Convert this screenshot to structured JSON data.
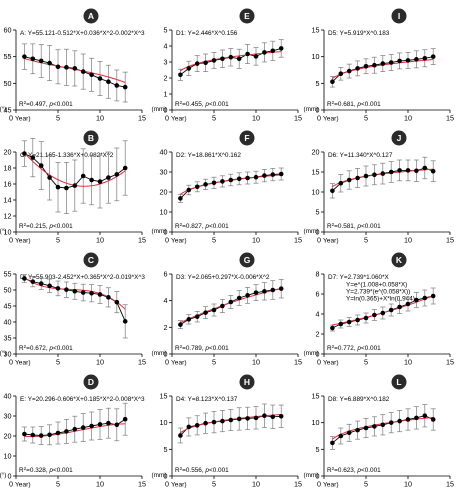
{
  "chart_data": [
    {
      "type": "scatter",
      "panel_letter": "A",
      "equation": "A:  Y=55.121-0.512*X+0.036*X^2-0.002*X^3",
      "r2_label": "R",
      "r2_value": "=0.497, ",
      "p_label": "p",
      "p_value": "<0.001",
      "unit": "(°)",
      "xlabel": "Year",
      "ylim": [
        45,
        60
      ],
      "yticks": [
        45,
        50,
        55,
        60
      ],
      "xlim": [
        0,
        15
      ],
      "xticks": [
        0,
        5,
        10,
        15
      ],
      "x": [
        1,
        2,
        3,
        4,
        5,
        6,
        7,
        8,
        9,
        10,
        11,
        12,
        13
      ],
      "y": [
        55,
        54.6,
        54.2,
        53.8,
        53.1,
        53,
        52.8,
        52.2,
        51.6,
        50.9,
        50.3,
        49.6,
        49.3
      ],
      "err": [
        2.4,
        2.8,
        3.1,
        3.3,
        3.2,
        3.4,
        3.3,
        3.3,
        3.1,
        3.2,
        3.1,
        2.9,
        2.8
      ],
      "fit": {
        "kind": "poly",
        "coef": [
          55.121,
          -0.512,
          0.036,
          -0.002
        ]
      }
    },
    {
      "type": "scatter",
      "panel_letter": "E",
      "equation": "D1:  Y=2.446*X^0.156",
      "r2_label": "R",
      "r2_value": "=0.455, ",
      "p_label": "p",
      "p_value": "<0.001",
      "unit": "(mm)",
      "xlabel": "Year",
      "ylim": [
        0,
        5
      ],
      "yticks": [
        0,
        1,
        2,
        3,
        4,
        5
      ],
      "xlim": [
        0,
        15
      ],
      "xticks": [
        0,
        5,
        10,
        15
      ],
      "x": [
        1,
        2,
        3,
        4,
        5,
        6,
        7,
        8,
        9,
        10,
        11,
        12,
        13
      ],
      "y": [
        2.2,
        2.6,
        2.9,
        2.95,
        3.1,
        3.2,
        3.3,
        3.2,
        3.5,
        3.35,
        3.6,
        3.7,
        3.85
      ],
      "err": [
        0.35,
        0.45,
        0.5,
        0.55,
        0.5,
        0.55,
        0.55,
        0.6,
        0.6,
        0.55,
        0.6,
        0.6,
        0.55
      ],
      "fit": {
        "kind": "power",
        "coef": [
          2.446,
          0.156
        ]
      }
    },
    {
      "type": "scatter",
      "panel_letter": "I",
      "equation": "D5:  Y=5.919*X^0.183",
      "r2_label": "R",
      "r2_value": "=0.681, ",
      "p_label": "p",
      "p_value": "<0.001",
      "unit": "(mm)",
      "xlabel": "Year",
      "ylim": [
        0,
        15
      ],
      "yticks": [
        0,
        5,
        10,
        15
      ],
      "xlim": [
        0,
        15
      ],
      "xticks": [
        0,
        5,
        10,
        15
      ],
      "x": [
        1,
        2,
        3,
        4,
        5,
        6,
        7,
        8,
        9,
        10,
        11,
        12,
        13
      ],
      "y": [
        5.3,
        6.8,
        7.3,
        7.8,
        8.2,
        8.4,
        8.7,
        8.9,
        9.2,
        9.3,
        9.5,
        9.7,
        10
      ],
      "err": [
        1,
        1.2,
        1.3,
        1.4,
        1.4,
        1.5,
        1.5,
        1.5,
        1.5,
        1.5,
        1.6,
        1.6,
        1.5
      ],
      "fit": {
        "kind": "power",
        "coef": [
          5.919,
          0.183
        ]
      }
    },
    {
      "type": "scatter",
      "panel_letter": "B",
      "equation": "C:  Y=21.165-1.336*X+0.082*X^2",
      "r2_label": "R",
      "r2_value": "=0.215, ",
      "p_label": "p",
      "p_value": "<0.001",
      "unit": "(°)",
      "xlabel": "Year",
      "ylim": [
        10,
        20
      ],
      "yticks": [
        10,
        12,
        14,
        16,
        18,
        20
      ],
      "xlim": [
        0,
        15
      ],
      "xticks": [
        0,
        5,
        10,
        15
      ],
      "x": [
        1,
        2,
        3,
        4,
        5,
        6,
        7,
        8,
        9,
        10,
        11,
        12,
        13
      ],
      "y": [
        19.8,
        19.3,
        18.3,
        16.8,
        15.6,
        15.5,
        15.8,
        17,
        16.5,
        16.3,
        16.8,
        17.2,
        18
      ],
      "err": [
        1.6,
        2.4,
        3,
        2.8,
        3.1,
        3.2,
        3.2,
        3.4,
        3.1,
        3.3,
        3.2,
        3.3,
        3.4
      ],
      "fit": {
        "kind": "poly",
        "coef": [
          21.165,
          -1.336,
          0.082
        ]
      }
    },
    {
      "type": "scatter",
      "panel_letter": "F",
      "equation": "D2:  Y=18.861*X^0.162",
      "r2_label": "R",
      "r2_value": "=0.827, ",
      "p_label": "p",
      "p_value": "<0.001",
      "unit": "(mm)",
      "xlabel": "Year",
      "ylim": [
        0,
        40
      ],
      "yticks": [
        0,
        10,
        20,
        30,
        40
      ],
      "xlim": [
        0,
        15
      ],
      "xticks": [
        0,
        5,
        10,
        15
      ],
      "x": [
        1,
        2,
        3,
        4,
        5,
        6,
        7,
        8,
        9,
        10,
        11,
        12,
        13
      ],
      "y": [
        16.8,
        21,
        22.6,
        23.8,
        24.6,
        25.3,
        26,
        26.6,
        27,
        27.4,
        28.2,
        28.7,
        29
      ],
      "err": [
        2,
        2.4,
        2.5,
        2.6,
        2.8,
        2.8,
        2.9,
        3,
        3,
        3,
        3.1,
        3.1,
        3
      ],
      "fit": {
        "kind": "power",
        "coef": [
          18.861,
          0.162
        ]
      }
    },
    {
      "type": "scatter",
      "panel_letter": "J",
      "equation": "D6:  Y=11.340*X^0.127",
      "r2_label": "R",
      "r2_value": "=0.581, ",
      "p_label": "p",
      "p_value": "<0.001",
      "unit": "(mm)",
      "xlabel": "Year",
      "ylim": [
        0,
        20
      ],
      "yticks": [
        0,
        5,
        10,
        15,
        20
      ],
      "xlim": [
        0,
        15
      ],
      "xticks": [
        0,
        5,
        10,
        15
      ],
      "x": [
        1,
        2,
        3,
        4,
        5,
        6,
        7,
        8,
        9,
        10,
        11,
        12,
        13
      ],
      "y": [
        10.3,
        12.2,
        13,
        13.5,
        14,
        14.3,
        14.6,
        15,
        15.4,
        15.4,
        15.3,
        16,
        15.2
      ],
      "err": [
        1.8,
        2.2,
        2.3,
        2.4,
        2.5,
        2.5,
        2.6,
        2.6,
        2.6,
        2.6,
        2.7,
        2.7,
        2.6
      ],
      "fit": {
        "kind": "power",
        "coef": [
          11.34,
          0.127
        ]
      }
    },
    {
      "type": "scatter",
      "panel_letter": "C",
      "equation": "D:  Y=55.903-2.452*X+0.365*X^2-0.019*X^3",
      "r2_label": "R",
      "r2_value": "=0.672, ",
      "p_label": "p",
      "p_value": "<0.001",
      "unit": "(°)",
      "xlabel": "Year",
      "ylim": [
        30,
        55
      ],
      "yticks": [
        30,
        35,
        40,
        45,
        50,
        55
      ],
      "xlim": [
        0,
        15
      ],
      "xticks": [
        0,
        5,
        10,
        15
      ],
      "x": [
        1,
        2,
        3,
        4,
        5,
        6,
        7,
        8,
        9,
        10,
        11,
        12,
        13
      ],
      "y": [
        53.6,
        52.6,
        52,
        51.3,
        50.5,
        50.1,
        49.6,
        49.2,
        49,
        48.6,
        47.7,
        46.2,
        40.2
      ],
      "err": [
        1.2,
        1.6,
        1.8,
        2.1,
        2.3,
        2.4,
        2.5,
        2.6,
        2.7,
        2.8,
        3,
        3.3,
        5.2
      ],
      "fit": {
        "kind": "poly",
        "coef": [
          55.903,
          -2.452,
          0.365,
          -0.019
        ]
      }
    },
    {
      "type": "scatter",
      "panel_letter": "G",
      "equation": "D3:  Y=2.065+0.297*X-0.006*X^2",
      "r2_label": "R",
      "r2_value": "=0.789, ",
      "p_label": "p",
      "p_value": "<0.001",
      "unit": "(mm)",
      "xlabel": "Year",
      "ylim": [
        0,
        6
      ],
      "yticks": [
        0,
        2,
        4,
        6
      ],
      "xlim": [
        0,
        15
      ],
      "xticks": [
        0,
        5,
        10,
        15
      ],
      "x": [
        1,
        2,
        3,
        4,
        5,
        6,
        7,
        8,
        9,
        10,
        11,
        12,
        13
      ],
      "y": [
        2.2,
        2.6,
        2.8,
        3.1,
        3.3,
        3.6,
        3.9,
        4.2,
        4.4,
        4.6,
        4.7,
        4.8,
        4.9
      ],
      "err": [
        0.3,
        0.35,
        0.4,
        0.45,
        0.45,
        0.5,
        0.5,
        0.55,
        0.6,
        0.6,
        0.65,
        0.7,
        0.7
      ],
      "fit": {
        "kind": "poly",
        "coef": [
          2.065,
          0.297,
          -0.006
        ]
      }
    },
    {
      "type": "scatter",
      "panel_letter": "K",
      "equation": "D7:  Y=2.739*1.060*X",
      "equation_extra": [
        "Y=e^(1.008+0.058*X)",
        "Y=2.739*(e^(0.058*X))",
        "Y=ln(0.365)+X*ln(0.944)"
      ],
      "r2_label": "R",
      "r2_value": "=0.772, ",
      "p_label": "p",
      "p_value": "<0.001",
      "unit": "(mm)",
      "xlabel": "Year",
      "ylim": [
        0,
        8
      ],
      "yticks": [
        0,
        2,
        4,
        6,
        8
      ],
      "xlim": [
        0,
        15
      ],
      "xticks": [
        0,
        5,
        10,
        15
      ],
      "x": [
        1,
        2,
        3,
        4,
        5,
        6,
        7,
        8,
        9,
        10,
        11,
        12,
        13
      ],
      "y": [
        2.6,
        3,
        3.2,
        3.4,
        3.6,
        3.9,
        4.1,
        4.4,
        4.7,
        5,
        5.4,
        5.6,
        5.8
      ],
      "err": [
        0.3,
        0.4,
        0.45,
        0.5,
        0.5,
        0.55,
        0.6,
        0.6,
        0.65,
        0.7,
        0.75,
        0.8,
        0.8
      ],
      "fit": {
        "kind": "exp",
        "coef": [
          2.739,
          0.058
        ]
      }
    },
    {
      "type": "scatter",
      "panel_letter": "D",
      "equation": "E:  Y=20.296-0.606*X+0.185*X^2-0.008*X^3",
      "r2_label": "R",
      "r2_value": "=0.328, ",
      "p_label": "p",
      "p_value": "<0.001",
      "unit": "(°)",
      "xlabel": "Year",
      "ylim": [
        0,
        40
      ],
      "yticks": [
        0,
        10,
        20,
        30,
        40
      ],
      "xlim": [
        0,
        15
      ],
      "xticks": [
        0,
        5,
        10,
        15
      ],
      "x": [
        1,
        2,
        3,
        4,
        5,
        6,
        7,
        8,
        9,
        10,
        11,
        12,
        13
      ],
      "y": [
        21,
        20.5,
        20.2,
        20.6,
        21.5,
        22.3,
        23.4,
        24.2,
        25,
        25.8,
        26.4,
        25.6,
        28.4
      ],
      "err": [
        3.5,
        4,
        4.5,
        5,
        5.5,
        6,
        6.5,
        7,
        7,
        7.5,
        7.5,
        8,
        8
      ],
      "fit": {
        "kind": "poly",
        "coef": [
          20.296,
          -0.606,
          0.185,
          -0.008
        ]
      }
    },
    {
      "type": "scatter",
      "panel_letter": "H",
      "equation": "D4:  Y=8.123*X^0.137",
      "r2_label": "R",
      "r2_value": "=0.556, ",
      "p_label": "p",
      "p_value": "<0.001",
      "unit": "(mm)",
      "xlabel": "Year",
      "ylim": [
        0,
        15
      ],
      "yticks": [
        0,
        5,
        10,
        15
      ],
      "xlim": [
        0,
        15
      ],
      "xticks": [
        0,
        5,
        10,
        15
      ],
      "x": [
        1,
        2,
        3,
        4,
        5,
        6,
        7,
        8,
        9,
        10,
        11,
        12,
        13
      ],
      "y": [
        7.6,
        9.2,
        9.5,
        9.9,
        10.1,
        10.3,
        10.5,
        10.7,
        10.8,
        10.9,
        11.3,
        11.1,
        11.2
      ],
      "err": [
        1.4,
        1.7,
        1.8,
        1.9,
        2,
        2,
        2,
        2.1,
        2.1,
        2.1,
        2.2,
        2.2,
        2.1
      ],
      "fit": {
        "kind": "power",
        "coef": [
          8.123,
          0.137
        ]
      }
    },
    {
      "type": "scatter",
      "panel_letter": "L",
      "equation": "D8:  Y=6.889*X^0.182",
      "r2_label": "R",
      "r2_value": "=0.623, ",
      "p_label": "p",
      "p_value": "<0.001",
      "unit": "(mm)",
      "xlabel": "Year",
      "ylim": [
        0,
        15
      ],
      "yticks": [
        0,
        5,
        10,
        15
      ],
      "xlim": [
        0,
        15
      ],
      "xticks": [
        0,
        5,
        10,
        15
      ],
      "x": [
        1,
        2,
        3,
        4,
        5,
        6,
        7,
        8,
        9,
        10,
        11,
        12,
        13
      ],
      "y": [
        6.2,
        7.5,
        8.1,
        8.6,
        9,
        9.3,
        9.6,
        10,
        10.3,
        10.6,
        10.9,
        11.3,
        10.6
      ],
      "err": [
        1.2,
        1.5,
        1.6,
        1.7,
        1.8,
        1.8,
        1.9,
        1.9,
        2,
        2,
        2.1,
        2.1,
        2
      ],
      "fit": {
        "kind": "power",
        "coef": [
          6.889,
          0.182
        ]
      }
    }
  ],
  "colors": {
    "marker": "#000000",
    "fit_line": "#e8293a",
    "error_bar": "#7a7a7a",
    "axis": "#000000",
    "badge_fill": "#2b2b2b",
    "badge_text": "#ffffff"
  }
}
